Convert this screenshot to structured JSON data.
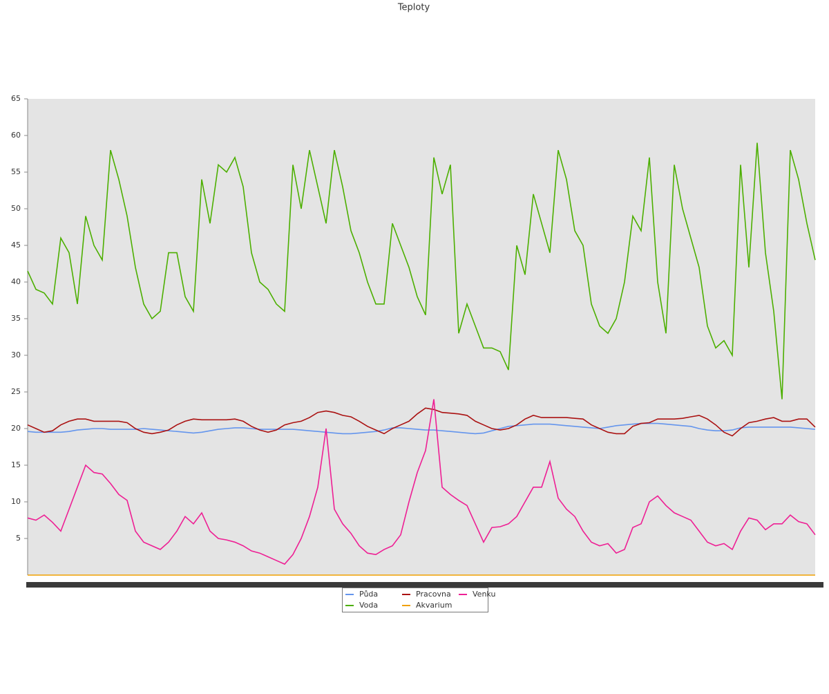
{
  "chart_data": {
    "type": "line",
    "title": "Teploty",
    "categories": [
      null,
      null,
      null,
      null,
      null,
      null,
      null,
      null,
      null,
      null,
      null,
      null,
      null,
      null,
      null,
      null,
      null,
      null,
      null,
      null,
      null,
      null,
      null,
      null,
      null,
      null,
      null,
      null,
      null,
      null,
      null,
      null,
      null,
      null,
      null,
      null,
      null,
      null,
      null,
      null,
      null,
      null,
      null,
      null,
      null,
      null,
      null,
      null,
      null,
      null,
      null,
      null,
      null,
      null,
      null,
      null,
      null,
      null,
      null,
      null,
      null,
      null,
      null,
      null,
      null,
      null,
      null,
      null,
      null,
      null,
      null,
      null,
      null,
      null,
      null,
      null,
      null,
      null,
      null,
      null,
      null,
      null,
      null,
      null,
      null,
      null,
      null,
      null,
      null,
      null,
      null,
      null,
      null,
      null,
      null,
      null
    ],
    "ylim": [
      0,
      65
    ],
    "yticks": [
      5,
      10,
      15,
      20,
      25,
      30,
      35,
      40,
      45,
      50,
      55,
      60,
      65
    ],
    "series": [
      {
        "name": "Půda",
        "color": "#6495ed",
        "values": [
          19.6,
          19.5,
          19.5,
          19.5,
          19.5,
          19.6,
          19.8,
          19.9,
          20,
          20,
          19.9,
          19.9,
          19.9,
          19.9,
          20,
          19.9,
          19.8,
          19.7,
          19.6,
          19.5,
          19.4,
          19.5,
          19.7,
          19.9,
          20,
          20.1,
          20.1,
          20,
          19.9,
          19.9,
          19.9,
          19.9,
          19.9,
          19.8,
          19.7,
          19.6,
          19.5,
          19.4,
          19.3,
          19.3,
          19.4,
          19.5,
          19.6,
          19.8,
          20.1,
          20.1,
          20,
          19.9,
          19.8,
          19.8,
          19.7,
          19.6,
          19.5,
          19.4,
          19.3,
          19.4,
          19.7,
          20,
          20.3,
          20.4,
          20.5,
          20.6,
          20.6,
          20.6,
          20.5,
          20.4,
          20.3,
          20.2,
          20.1,
          20,
          20.2,
          20.4,
          20.5,
          20.6,
          20.7,
          20.7,
          20.7,
          20.6,
          20.5,
          20.4,
          20.3,
          20,
          19.8,
          19.7,
          19.7,
          19.8,
          20.1,
          20.2,
          20.2,
          20.2,
          20.2,
          20.2,
          20.2,
          20.1,
          20,
          19.9
        ]
      },
      {
        "name": "Voda",
        "color": "#4caf00",
        "values": [
          41.5,
          39,
          38.5,
          37,
          46,
          44,
          37,
          49,
          45,
          43,
          58,
          54,
          49,
          42,
          37,
          35,
          36,
          44,
          44,
          38,
          36,
          54,
          48,
          56,
          55,
          57,
          53,
          44,
          40,
          39,
          37,
          36,
          56,
          50,
          58,
          53,
          48,
          58,
          53,
          47,
          44,
          40,
          37,
          37,
          48,
          45,
          42,
          38,
          35.5,
          57,
          52,
          56,
          33,
          37,
          34,
          31,
          31,
          30.5,
          28,
          45,
          41,
          52,
          48,
          44,
          58,
          54,
          47,
          45,
          37,
          34,
          33,
          35,
          40,
          49,
          47,
          57,
          40,
          33,
          56,
          50,
          46,
          42,
          34,
          31,
          32,
          30,
          56,
          42,
          59,
          44,
          36,
          24,
          58,
          54,
          48,
          43
        ]
      },
      {
        "name": "Pracovna",
        "color": "#aa1111",
        "values": [
          20.5,
          20,
          19.5,
          19.7,
          20.5,
          21,
          21.3,
          21.3,
          21,
          21,
          21,
          21,
          20.8,
          20,
          19.5,
          19.3,
          19.5,
          19.8,
          20.5,
          21,
          21.3,
          21.2,
          21.2,
          21.2,
          21.2,
          21.3,
          21,
          20.3,
          19.8,
          19.5,
          19.8,
          20.5,
          20.8,
          21,
          21.5,
          22.2,
          22.4,
          22.2,
          21.8,
          21.6,
          21,
          20.3,
          19.8,
          19.3,
          20,
          20.5,
          21,
          22,
          22.8,
          22.6,
          22.2,
          22.1,
          22,
          21.8,
          21,
          20.5,
          20,
          19.8,
          20,
          20.5,
          21.3,
          21.8,
          21.5,
          21.5,
          21.5,
          21.5,
          21.4,
          21.3,
          20.5,
          20,
          19.5,
          19.3,
          19.3,
          20.3,
          20.7,
          20.8,
          21.3,
          21.3,
          21.3,
          21.4,
          21.6,
          21.8,
          21.3,
          20.5,
          19.5,
          19,
          20,
          20.8,
          21,
          21.3,
          21.5,
          21,
          21,
          21.3,
          21.3,
          20.2
        ]
      },
      {
        "name": "Akvarium",
        "color": "#f0a000",
        "values": [
          0,
          0,
          0,
          0,
          0,
          0,
          0,
          0,
          0,
          0,
          0,
          0,
          0,
          0,
          0,
          0,
          0,
          0,
          0,
          0,
          0,
          0,
          0,
          0,
          0,
          0,
          0,
          0,
          0,
          0,
          0,
          0,
          0,
          0,
          0,
          0,
          0,
          0,
          0,
          0,
          0,
          0,
          0,
          0,
          0,
          0,
          0,
          0,
          0,
          0,
          0,
          0,
          0,
          0,
          0,
          0,
          0,
          0,
          0,
          0,
          0,
          0,
          0,
          0,
          0,
          0,
          0,
          0,
          0,
          0,
          0,
          0,
          0,
          0,
          0,
          0,
          0,
          0,
          0,
          0,
          0,
          0,
          0,
          0,
          0,
          0,
          0,
          0,
          0,
          0,
          0,
          0,
          0,
          0,
          0,
          0
        ]
      },
      {
        "name": "Venku",
        "color": "#ee1f94",
        "values": [
          7.8,
          7.5,
          8.2,
          7.2,
          6,
          9,
          12,
          15,
          14,
          13.8,
          12.5,
          11,
          10.2,
          6,
          4.5,
          4,
          3.5,
          4.5,
          6,
          8,
          7,
          8.5,
          6,
          5,
          4.8,
          4.5,
          4,
          3.3,
          3,
          2.5,
          2,
          1.5,
          2.8,
          5,
          8,
          12,
          20,
          9,
          7,
          5.7,
          4,
          3,
          2.8,
          3.5,
          4,
          5.5,
          10,
          14,
          17,
          24,
          12,
          11,
          10.2,
          9.5,
          7,
          4.5,
          6.5,
          6.6,
          7,
          8,
          10,
          12,
          12,
          15.5,
          10.5,
          9,
          8,
          6,
          4.5,
          4,
          4.3,
          3,
          3.5,
          6.5,
          7,
          10,
          10.8,
          9.5,
          8.5,
          8,
          7.5,
          6,
          4.5,
          4,
          4.3,
          3.5,
          6,
          7.8,
          7.5,
          6.2,
          7,
          7,
          8.2,
          7.3,
          7,
          5.5
        ]
      }
    ]
  }
}
